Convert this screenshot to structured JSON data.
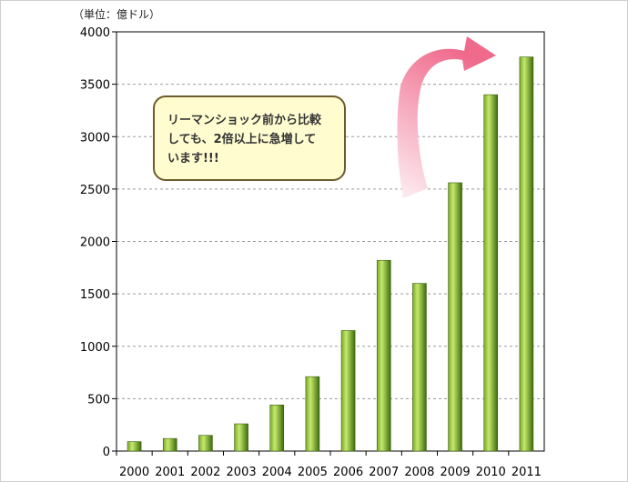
{
  "unit_label": "（単位：億ドル）",
  "callout": {
    "lines": [
      "リーマンショック前から比較",
      "しても、2倍以上に急増して",
      "います!!!"
    ]
  },
  "colors": {
    "bar_light": "#b8e05a",
    "bar_dark": "#3d6b0c",
    "arrow": "#f06a8c",
    "callout_fill": "#fffdd0",
    "callout_border": "#6d5a2c"
  },
  "chart_data": {
    "type": "bar",
    "categories": [
      "2000",
      "2001",
      "2002",
      "2003",
      "2004",
      "2005",
      "2006",
      "2007",
      "2008",
      "2009",
      "2010",
      "2011"
    ],
    "values": [
      90,
      120,
      150,
      260,
      440,
      710,
      1150,
      1820,
      1600,
      2560,
      3400,
      3760
    ],
    "ylim": [
      0,
      4000
    ],
    "yticks": [
      "0",
      "500",
      "1000",
      "1500",
      "2000",
      "2500",
      "3000",
      "3500",
      "4000"
    ],
    "title": "",
    "xlabel": "",
    "ylabel": "（単位：億ドル）",
    "grid": true,
    "legend": "none"
  }
}
